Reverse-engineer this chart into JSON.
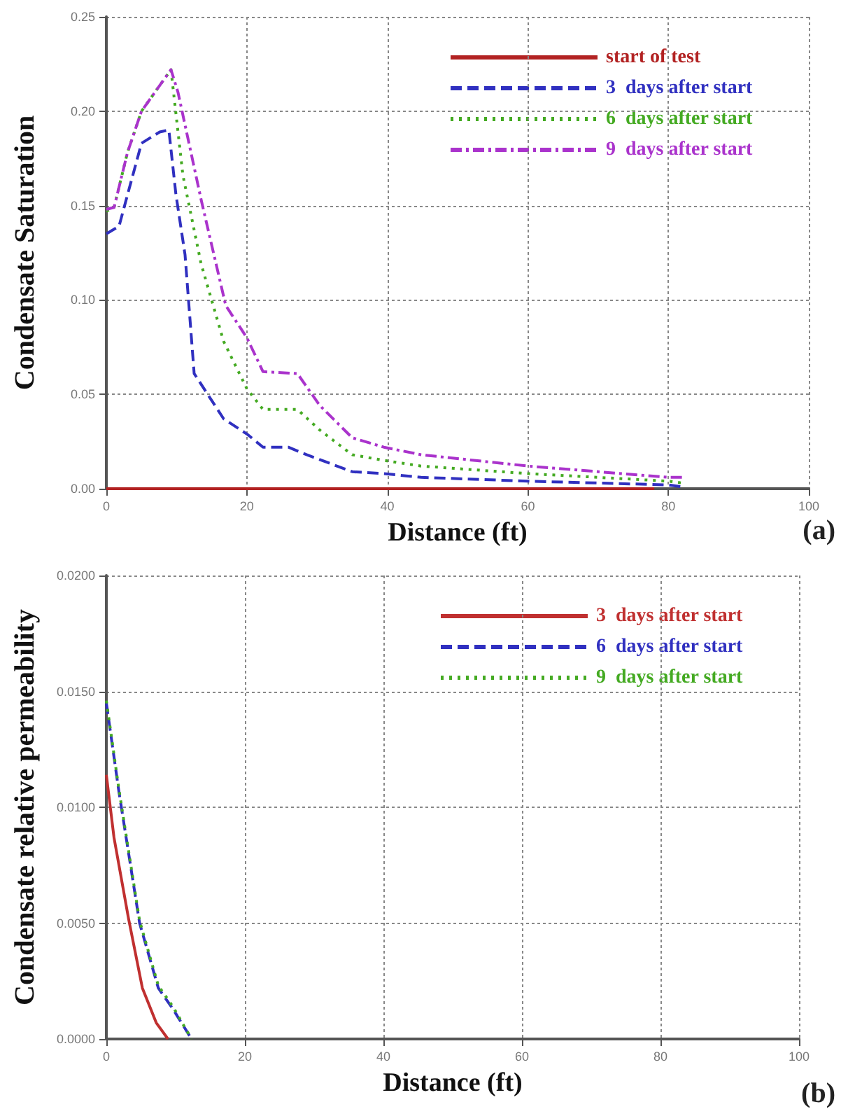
{
  "chart_data": [
    {
      "type": "line",
      "xlabel": "Distance (ft)",
      "ylabel": "Condensate Saturation",
      "annotations": [
        "(a)"
      ],
      "xlim": [
        0,
        100
      ],
      "xticks": [
        0,
        20,
        40,
        60,
        80,
        100
      ],
      "ylim": [
        0,
        0.25
      ],
      "yticks": [
        {
          "value": 0,
          "label": "0.00"
        },
        {
          "value": 0.05,
          "label": "0.05"
        },
        {
          "value": 0.1,
          "label": "0.10"
        },
        {
          "value": 0.15,
          "label": "0.15"
        },
        {
          "value": 0.2,
          "label": "0.20"
        },
        {
          "value": 0.25,
          "label": "0.25"
        }
      ],
      "grid": true,
      "legend": "top right",
      "marker": "none",
      "series": [
        {
          "name": "start of test",
          "color": "#b22222",
          "line_style": "solid",
          "x": [
            0,
            78
          ],
          "values": [
            0,
            0
          ]
        },
        {
          "name": "3  days after start",
          "color": "#3030c0",
          "line_style": "dashed",
          "x": [
            0,
            1.8,
            5,
            7.6,
            8.9,
            9.9,
            11.2,
            12.5,
            16.7,
            20,
            22.3,
            25.9,
            28.5,
            35,
            39.5,
            44.8,
            60,
            80,
            82
          ],
          "values": [
            0.135,
            0.139,
            0.183,
            0.189,
            0.19,
            0.156,
            0.124,
            0.061,
            0.037,
            0.029,
            0.022,
            0.022,
            0.018,
            0.009,
            0.008,
            0.006,
            0.004,
            0.002,
            0.001
          ]
        },
        {
          "name": "6  days after start",
          "color": "#44aa22",
          "line_style": "dotted",
          "x": [
            0,
            1.1,
            3,
            5,
            9.2,
            10.9,
            13.5,
            16.7,
            20,
            22.3,
            27.2,
            30.4,
            35,
            39.5,
            44.8,
            60,
            80,
            82
          ],
          "values": [
            0.147,
            0.149,
            0.178,
            0.2,
            0.222,
            0.166,
            0.119,
            0.078,
            0.053,
            0.042,
            0.042,
            0.031,
            0.018,
            0.015,
            0.012,
            0.008,
            0.004,
            0.003
          ]
        },
        {
          "name": "9  days after start",
          "color": "#aa33cc",
          "line_style": "dashdot",
          "x": [
            0,
            1.1,
            3,
            5,
            9.2,
            10.2,
            13.5,
            17,
            20,
            22.3,
            27.2,
            30.4,
            35,
            39.5,
            44.8,
            60,
            80,
            82
          ],
          "values": [
            0.148,
            0.149,
            0.178,
            0.2,
            0.222,
            0.21,
            0.153,
            0.097,
            0.08,
            0.062,
            0.061,
            0.044,
            0.027,
            0.022,
            0.018,
            0.012,
            0.006,
            0.006
          ]
        }
      ]
    },
    {
      "type": "line",
      "xlabel": "Distance (ft)",
      "ylabel": "Condensate relative permeability",
      "annotations": [
        "(b)"
      ],
      "xlim": [
        0,
        100
      ],
      "xticks": [
        0,
        20,
        40,
        60,
        80,
        100
      ],
      "ylim": [
        0,
        0.02
      ],
      "yticks": [
        {
          "value": 0,
          "label": "0.0000"
        },
        {
          "value": 0.005,
          "label": "0.0050"
        },
        {
          "value": 0.01,
          "label": "0.0100"
        },
        {
          "value": 0.015,
          "label": "0.0150"
        },
        {
          "value": 0.02,
          "label": "0.0200"
        }
      ],
      "grid": true,
      "legend": "top right",
      "marker": "none",
      "series": [
        {
          "name": "3  days after start",
          "color": "#c03030",
          "line_style": "solid",
          "x": [
            0,
            1.1,
            3.2,
            5.2,
            7.2,
            8.9
          ],
          "values": [
            0.0114,
            0.0087,
            0.0052,
            0.0022,
            0.0007,
            0
          ]
        },
        {
          "name": "6  days after start",
          "color": "#3030c0",
          "line_style": "dashed",
          "x": [
            0,
            1.8,
            4.8,
            7.5,
            9.6,
            12.3
          ],
          "values": [
            0.0145,
            0.0107,
            0.005,
            0.0022,
            0.0013,
            0
          ]
        },
        {
          "name": "9  days after start",
          "color": "#44aa22",
          "line_style": "dotted",
          "x": [
            0,
            1.8,
            4.8,
            7.5,
            9.6,
            12.3
          ],
          "values": [
            0.0146,
            0.0108,
            0.0051,
            0.0023,
            0.0014,
            0
          ]
        }
      ]
    }
  ]
}
